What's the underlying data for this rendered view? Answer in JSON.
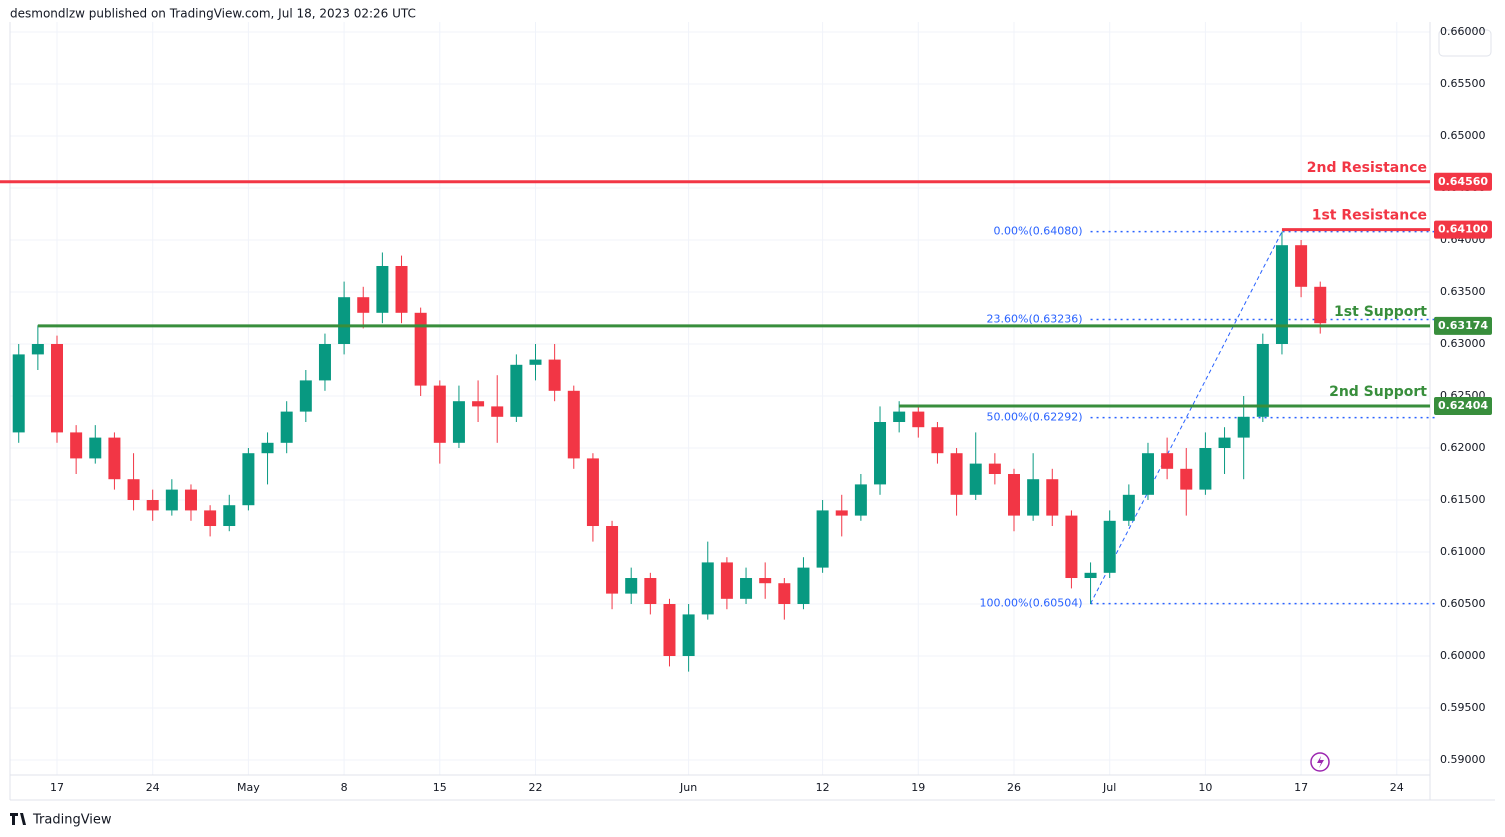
{
  "header": "desmondlzw published on TradingView.com, Jul 18, 2023 02:26 UTC",
  "footer": "TradingView",
  "chart_data": {
    "type": "candlestick",
    "x": [
      "2023-04-13",
      "2023-04-14",
      "2023-04-17",
      "2023-04-18",
      "2023-04-19",
      "2023-04-20",
      "2023-04-21",
      "2023-04-24",
      "2023-04-25",
      "2023-04-26",
      "2023-04-27",
      "2023-04-28",
      "2023-05-01",
      "2023-05-02",
      "2023-05-03",
      "2023-05-04",
      "2023-05-05",
      "2023-05-08",
      "2023-05-09",
      "2023-05-10",
      "2023-05-11",
      "2023-05-12",
      "2023-05-15",
      "2023-05-16",
      "2023-05-17",
      "2023-05-18",
      "2023-05-19",
      "2023-05-22",
      "2023-05-23",
      "2023-05-24",
      "2023-05-25",
      "2023-05-26",
      "2023-05-29",
      "2023-05-30",
      "2023-05-31",
      "2023-06-01",
      "2023-06-02",
      "2023-06-05",
      "2023-06-06",
      "2023-06-07",
      "2023-06-08",
      "2023-06-09",
      "2023-06-12",
      "2023-06-13",
      "2023-06-14",
      "2023-06-15",
      "2023-06-16",
      "2023-06-19",
      "2023-06-20",
      "2023-06-21",
      "2023-06-22",
      "2023-06-23",
      "2023-06-26",
      "2023-06-27",
      "2023-06-28",
      "2023-06-29",
      "2023-06-30",
      "2023-07-03",
      "2023-07-04",
      "2023-07-05",
      "2023-07-06",
      "2023-07-07",
      "2023-07-10",
      "2023-07-11",
      "2023-07-12",
      "2023-07-13",
      "2023-07-14",
      "2023-07-17",
      "2023-07-18"
    ],
    "open": [
      0.6215,
      0.629,
      0.63,
      0.6215,
      0.619,
      0.621,
      0.617,
      0.615,
      0.614,
      0.616,
      0.614,
      0.6125,
      0.6145,
      0.6195,
      0.6205,
      0.6235,
      0.6265,
      0.63,
      0.6345,
      0.633,
      0.6375,
      0.633,
      0.626,
      0.6205,
      0.6245,
      0.624,
      0.623,
      0.628,
      0.6285,
      0.6255,
      0.619,
      0.6125,
      0.606,
      0.6075,
      0.605,
      0.6,
      0.604,
      0.609,
      0.6055,
      0.6075,
      0.607,
      0.605,
      0.6085,
      0.614,
      0.6135,
      0.6165,
      0.6225,
      0.6235,
      0.622,
      0.6195,
      0.6155,
      0.6185,
      0.6175,
      0.6135,
      0.617,
      0.6135,
      0.6075,
      0.608,
      0.613,
      0.6155,
      0.6195,
      0.618,
      0.616,
      0.62,
      0.621,
      0.623,
      0.63,
      0.6395,
      0.6355
    ],
    "high": [
      0.63,
      0.6318,
      0.6308,
      0.6222,
      0.6222,
      0.6215,
      0.6195,
      0.616,
      0.617,
      0.6165,
      0.6145,
      0.6155,
      0.62,
      0.6215,
      0.6245,
      0.6275,
      0.631,
      0.636,
      0.6355,
      0.6388,
      0.6385,
      0.6335,
      0.6265,
      0.626,
      0.6265,
      0.627,
      0.629,
      0.63,
      0.63,
      0.626,
      0.6195,
      0.613,
      0.6085,
      0.608,
      0.6055,
      0.605,
      0.611,
      0.6095,
      0.6085,
      0.609,
      0.6075,
      0.6095,
      0.615,
      0.6155,
      0.6175,
      0.624,
      0.6245,
      0.624,
      0.6225,
      0.62,
      0.6215,
      0.6195,
      0.618,
      0.6195,
      0.618,
      0.614,
      0.609,
      0.614,
      0.6165,
      0.6205,
      0.621,
      0.62,
      0.6215,
      0.622,
      0.625,
      0.631,
      0.6408,
      0.64,
      0.636
    ],
    "low": [
      0.6205,
      0.6275,
      0.6205,
      0.6175,
      0.6185,
      0.616,
      0.614,
      0.613,
      0.6135,
      0.613,
      0.6115,
      0.612,
      0.614,
      0.6165,
      0.6195,
      0.6225,
      0.6255,
      0.629,
      0.6315,
      0.632,
      0.632,
      0.625,
      0.6185,
      0.62,
      0.6225,
      0.6205,
      0.6225,
      0.6265,
      0.6245,
      0.618,
      0.611,
      0.6045,
      0.605,
      0.604,
      0.599,
      0.5985,
      0.6035,
      0.6045,
      0.605,
      0.6055,
      0.6035,
      0.6045,
      0.608,
      0.6115,
      0.613,
      0.6155,
      0.6215,
      0.621,
      0.6185,
      0.6135,
      0.615,
      0.6165,
      0.612,
      0.613,
      0.6125,
      0.6065,
      0.605,
      0.6075,
      0.6125,
      0.615,
      0.617,
      0.6135,
      0.6155,
      0.6175,
      0.617,
      0.6225,
      0.629,
      0.6345,
      0.631
    ],
    "close": [
      0.629,
      0.63,
      0.6215,
      0.619,
      0.621,
      0.617,
      0.615,
      0.614,
      0.616,
      0.614,
      0.6125,
      0.6145,
      0.6195,
      0.6205,
      0.6235,
      0.6265,
      0.63,
      0.6345,
      0.633,
      0.6375,
      0.633,
      0.626,
      0.6205,
      0.6245,
      0.624,
      0.623,
      0.628,
      0.6285,
      0.6255,
      0.619,
      0.6125,
      0.606,
      0.6075,
      0.605,
      0.6,
      0.604,
      0.609,
      0.6055,
      0.6075,
      0.607,
      0.605,
      0.6085,
      0.614,
      0.6135,
      0.6165,
      0.6225,
      0.6235,
      0.622,
      0.6195,
      0.6155,
      0.6185,
      0.6175,
      0.6135,
      0.617,
      0.6135,
      0.6075,
      0.608,
      0.613,
      0.6155,
      0.6195,
      0.618,
      0.616,
      0.62,
      0.621,
      0.623,
      0.63,
      0.6395,
      0.6355,
      0.632
    ],
    "up_color": "#089981",
    "down_color": "#f23645",
    "ylim": [
      0.58856,
      0.66096
    ],
    "yticks": [
      {
        "value": 0.59,
        "label": "0.59000"
      },
      {
        "value": 0.595,
        "label": "0.59500"
      },
      {
        "value": 0.6,
        "label": "0.60000"
      },
      {
        "value": 0.605,
        "label": "0.60500"
      },
      {
        "value": 0.61,
        "label": "0.61000"
      },
      {
        "value": 0.615,
        "label": "0.61500"
      },
      {
        "value": 0.62,
        "label": "0.62000"
      },
      {
        "value": 0.625,
        "label": "0.62500"
      },
      {
        "value": 0.63,
        "label": "0.63000"
      },
      {
        "value": 0.635,
        "label": "0.63500"
      },
      {
        "value": 0.64,
        "label": "0.64000"
      },
      {
        "value": 0.645,
        "label": "0.64500"
      },
      {
        "value": 0.65,
        "label": "0.65000"
      },
      {
        "value": 0.655,
        "label": "0.65500"
      },
      {
        "value": 0.66,
        "label": "0.66000"
      }
    ],
    "xticks": [
      {
        "value": "2023-04-17",
        "label": "17"
      },
      {
        "value": "2023-04-24",
        "label": "24"
      },
      {
        "value": "2023-05-01",
        "label": "May"
      },
      {
        "value": "2023-05-08",
        "label": "8"
      },
      {
        "value": "2023-05-15",
        "label": "15"
      },
      {
        "value": "2023-05-22",
        "label": "22"
      },
      {
        "value": "2023-06-01",
        "label": "Jun"
      },
      {
        "value": "2023-06-12",
        "label": "12"
      },
      {
        "value": "2023-06-19",
        "label": "19"
      },
      {
        "value": "2023-06-26",
        "label": "26"
      },
      {
        "value": "2023-07-03",
        "label": "Jul"
      },
      {
        "value": "2023-07-10",
        "label": "10"
      },
      {
        "value": "2023-07-17",
        "label": "17"
      },
      {
        "value": "2023-07-24",
        "label": "24"
      }
    ],
    "levels": [
      {
        "name": "2nd Resistance",
        "value": 0.6456,
        "value_label": "0.64560",
        "color": "#f23645",
        "start": "2023-04-12"
      },
      {
        "name": "1st Resistance",
        "value": 0.641,
        "value_label": "0.64100",
        "color": "#f23645",
        "start": "2023-07-14"
      },
      {
        "name": "1st Support",
        "value": 0.63174,
        "value_label": "0.63174",
        "color": "#388e3c",
        "start": "2023-04-14"
      },
      {
        "name": "2nd Support",
        "value": 0.62404,
        "value_label": "0.62404",
        "color": "#388e3c",
        "start": "2023-06-16"
      }
    ],
    "fibonacci": {
      "color": "#2962ff",
      "start": "2023-06-30",
      "low": 0.60504,
      "high": 0.6408,
      "high_date": "2023-07-14",
      "levels": [
        {
          "value": 0.6408,
          "label": "0.00%(0.64080)"
        },
        {
          "value": 0.63236,
          "label": "23.60%(0.63236)"
        },
        {
          "value": 0.62292,
          "label": "50.00%(0.62292)"
        },
        {
          "value": 0.60504,
          "label": "100.00%(0.60504)"
        }
      ]
    }
  }
}
